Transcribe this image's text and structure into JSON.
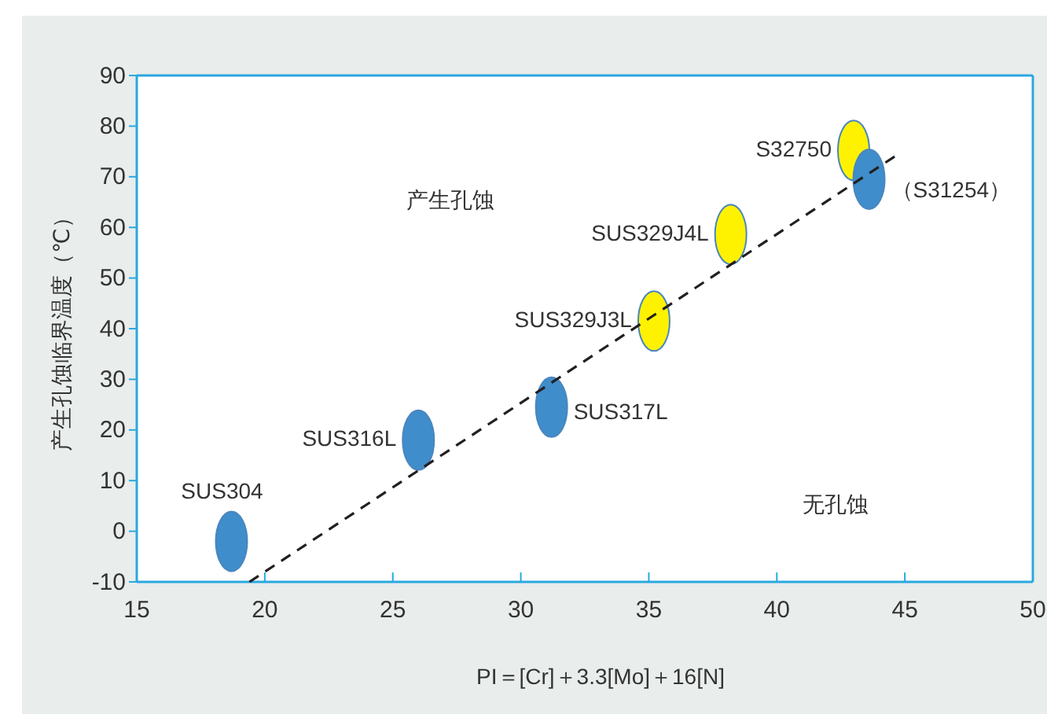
{
  "chart_data": {
    "type": "scatter",
    "xlabel": "PI＝[Cr]＋3.3[Mo]＋16[N]",
    "ylabel": "产生孔蚀临界温度（℃）",
    "xlim": [
      15,
      50
    ],
    "ylim": [
      -10,
      90
    ],
    "xticks": [
      15,
      20,
      25,
      30,
      35,
      40,
      45,
      50
    ],
    "yticks": [
      -10,
      0,
      10,
      20,
      30,
      40,
      50,
      60,
      70,
      80,
      90
    ],
    "grid": false,
    "marker": "circle",
    "annotations": [
      "产生孔蚀",
      "无孔蚀"
    ],
    "series": [
      {
        "name": "SUS304",
        "color": "#3f8dcb",
        "x": [
          18.7
        ],
        "values": [
          -2
        ]
      },
      {
        "name": "SUS316L",
        "color": "#3f8dcb",
        "x": [
          26.0
        ],
        "values": [
          18
        ]
      },
      {
        "name": "SUS317L",
        "color": "#3f8dcb",
        "x": [
          31.2
        ],
        "values": [
          24.5
        ]
      },
      {
        "name": "SUS329J3L",
        "color": "#fff200",
        "x": [
          35.2
        ],
        "values": [
          41.5
        ]
      },
      {
        "name": "SUS329J4L",
        "color": "#fff200",
        "x": [
          38.2
        ],
        "values": [
          58.6
        ]
      },
      {
        "name": "S32750",
        "color": "#fff200",
        "x": [
          43.0
        ],
        "values": [
          75.2
        ]
      },
      {
        "name": "（S31254）",
        "color": "#3f8dcb",
        "x": [
          43.6
        ],
        "values": [
          69.5
        ]
      },
      {
        "type": "line",
        "color": "#231f20",
        "x": [
          19.4,
          44.6
        ],
        "values": [
          -10,
          74
        ],
        "line_style": "dashed",
        "marker": "none"
      }
    ]
  }
}
